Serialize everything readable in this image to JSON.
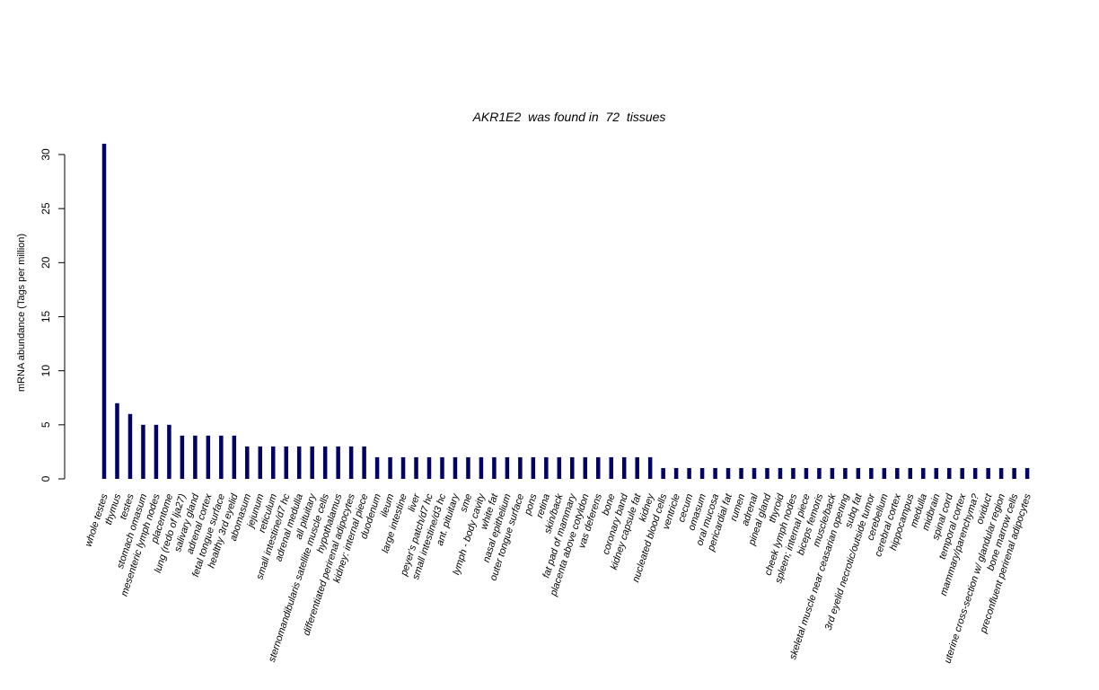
{
  "chart_data": {
    "type": "bar",
    "title": {
      "gene": "AKR1E2",
      "was_found_in": "was found in",
      "count": "72",
      "tissues": "tissues"
    },
    "ylabel": "mRNA abundance (Tags per million)",
    "xlabel": "",
    "ylim": [
      0,
      30
    ],
    "yticks": [
      0,
      5,
      10,
      15,
      20,
      25,
      30
    ],
    "bar_color": "#000066",
    "grid": false,
    "categories": [
      "whole testes",
      "thymus",
      "testes",
      "stomach omasum",
      "mesenteric lymph nodes",
      "placentome",
      "lung (redo of lja27)",
      "salivary gland",
      "adrenal cortex",
      "fetal tongue surface",
      "healthy 3rd eyelid",
      "abomasum",
      "jejunum",
      "reticulum",
      "small intestine/d7 hc",
      "adrenal medulla",
      "all pituitary",
      "sternomandibularis satellite muscle cells",
      "hypothalamus",
      "differentiated perirenal adipocytes",
      "kidney: internal piece",
      "duodenum",
      "ileum",
      "large intestine",
      "liver",
      "peyer's patch/d7 hc",
      "small intestine/d3 hc",
      "ant. pituitary",
      "sme",
      "lymph - body cavity",
      "white fat",
      "nasal epithelium",
      "outer tongue surface",
      "pons",
      "retina",
      "skin/back",
      "fat pad of mammary",
      "placenta above cotyldon",
      "vas deferens",
      "bone",
      "coronary band",
      "kidney capsule fat",
      "kidney",
      "nucleated blood cells",
      "ventricle",
      "cecum",
      "omasum",
      "oral mucosa",
      "pericardial fat",
      "rumen",
      "adrenal",
      "pineal gland",
      "thyroid",
      "cheek lymph nodes",
      "spleen; internal piece",
      "biceps femoris",
      "muscle/back",
      "skeletal muscle near ceasarian opening",
      "subq fat",
      "3rd eyelid necrotic/outside tumor",
      "cerebellum",
      "cerebral cortex",
      "hippocampus",
      "medulla",
      "midbrain",
      "spinal cord",
      "temporal cortex",
      "mammary/parenchyma?",
      "oviduct",
      "uterine cross-section w/ glandular region",
      "bone marrow cells",
      "preconfluent perirenal adipocytes"
    ],
    "values": [
      31,
      7,
      6,
      5,
      5,
      5,
      4,
      4,
      4,
      4,
      4,
      3,
      3,
      3,
      3,
      3,
      3,
      3,
      3,
      3,
      3,
      2,
      2,
      2,
      2,
      2,
      2,
      2,
      2,
      2,
      2,
      2,
      2,
      2,
      2,
      2,
      2,
      2,
      2,
      2,
      2,
      2,
      2,
      1,
      1,
      1,
      1,
      1,
      1,
      1,
      1,
      1,
      1,
      1,
      1,
      1,
      1,
      1,
      1,
      1,
      1,
      1,
      1,
      1,
      1,
      1,
      1,
      1,
      1,
      1,
      1,
      1
    ]
  }
}
